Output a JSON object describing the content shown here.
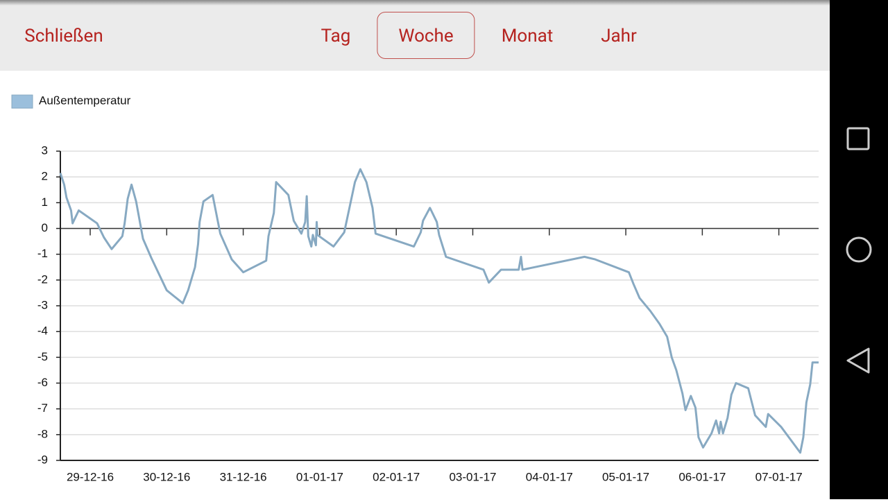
{
  "nav": {
    "close": "Schließen",
    "tabs": [
      "Tag",
      "Woche",
      "Monat",
      "Jahr"
    ],
    "active_tab": 1
  },
  "chart_data": {
    "type": "line",
    "series": [
      {
        "name": "Außentemperatur",
        "color": "#87a9c2",
        "x": [
          -0.39,
          -0.34,
          -0.31,
          -0.25,
          -0.23,
          -0.15,
          0.09,
          0.18,
          0.28,
          0.42,
          0.45,
          0.49,
          0.54,
          0.6,
          0.69,
          0.8,
          1.0,
          1.21,
          1.28,
          1.37,
          1.41,
          1.43,
          1.48,
          1.6,
          1.64,
          1.7,
          1.85,
          2.0,
          2.3,
          2.33,
          2.4,
          2.43,
          2.59,
          2.66,
          2.76,
          2.81,
          2.83,
          2.85,
          2.89,
          2.91,
          2.95,
          2.96,
          2.97,
          3.18,
          3.32,
          3.46,
          3.53,
          3.61,
          3.69,
          3.73,
          4.23,
          4.32,
          4.35,
          4.44,
          4.53,
          4.56,
          4.65,
          5.14,
          5.21,
          5.37,
          5.6,
          5.63,
          5.65,
          6.46,
          6.6,
          7.04,
          7.1,
          7.18,
          7.32,
          7.44,
          7.54,
          7.6,
          7.66,
          7.74,
          7.78,
          7.85,
          7.91,
          7.93,
          7.95,
          8.01,
          8.12,
          8.18,
          8.22,
          8.24,
          8.27,
          8.33,
          8.38,
          8.44,
          8.6,
          8.69,
          8.83,
          8.86,
          9.03,
          9.28,
          9.32,
          9.36,
          9.41,
          9.44,
          9.52
        ],
        "values": [
          2.15,
          1.7,
          1.2,
          0.7,
          0.2,
          0.7,
          0.2,
          -0.35,
          -0.8,
          -0.3,
          0.2,
          1.15,
          1.7,
          1.05,
          -0.4,
          -1.15,
          -2.4,
          -2.9,
          -2.4,
          -1.5,
          -0.6,
          0.25,
          1.05,
          1.3,
          0.7,
          -0.2,
          -1.2,
          -1.7,
          -1.25,
          -0.3,
          0.6,
          1.8,
          1.3,
          0.3,
          -0.2,
          0.25,
          1.25,
          -0.3,
          -0.7,
          -0.25,
          -0.65,
          0.25,
          -0.25,
          -0.7,
          -0.15,
          1.8,
          2.3,
          1.8,
          0.8,
          -0.2,
          -0.7,
          -0.15,
          0.3,
          0.8,
          0.25,
          -0.25,
          -1.1,
          -1.6,
          -2.1,
          -1.6,
          -1.6,
          -1.1,
          -1.6,
          -1.1,
          -1.2,
          -1.7,
          -2.15,
          -2.7,
          -3.2,
          -3.7,
          -4.2,
          -5.0,
          -5.5,
          -6.4,
          -7.05,
          -6.5,
          -6.95,
          -7.5,
          -8.1,
          -8.5,
          -7.95,
          -7.45,
          -7.95,
          -7.5,
          -7.95,
          -7.35,
          -6.45,
          -6.0,
          -6.2,
          -7.25,
          -7.7,
          -7.2,
          -7.7,
          -8.7,
          -8.1,
          -6.75,
          -6.05,
          -5.2,
          -5.2
        ]
      }
    ],
    "legend_color": "#9bbfdc",
    "xlim": [
      -0.39,
      9.52
    ],
    "xticks": [
      {
        "value": 0,
        "label": "29-12-16"
      },
      {
        "value": 1,
        "label": "30-12-16"
      },
      {
        "value": 2,
        "label": "31-12-16"
      },
      {
        "value": 3,
        "label": "01-01-17"
      },
      {
        "value": 4,
        "label": "02-01-17"
      },
      {
        "value": 5,
        "label": "03-01-17"
      },
      {
        "value": 6,
        "label": "04-01-17"
      },
      {
        "value": 7,
        "label": "05-01-17"
      },
      {
        "value": 8,
        "label": "06-01-17"
      },
      {
        "value": 9,
        "label": "07-01-17"
      }
    ],
    "ylim": [
      -9,
      3
    ],
    "yticks": [
      3,
      2,
      1,
      0,
      -1,
      -2,
      -3,
      -4,
      -5,
      -6,
      -7,
      -8,
      -9
    ],
    "grid": true
  }
}
